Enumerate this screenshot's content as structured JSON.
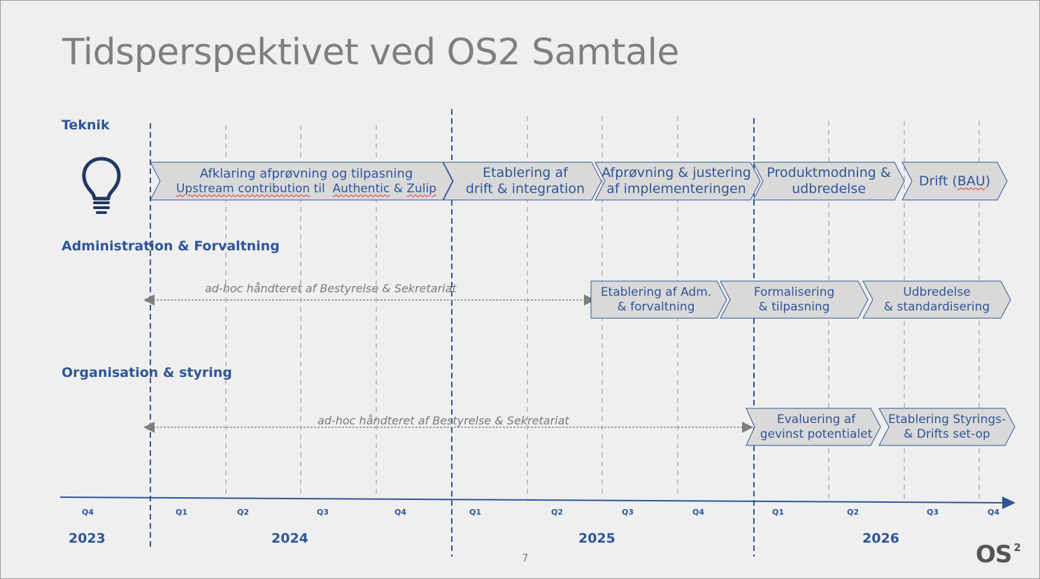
{
  "title": "Tidsperspektivet ved OS2 Samtale",
  "sections": {
    "teknik": "Teknik",
    "admin": "Administration & Forvaltning",
    "org": "Organisation & styring"
  },
  "teknik_phases": {
    "p1_line1": "Afklaring afprøvning og tilpasning",
    "p1_line2a": "Upstream",
    "p1_line2b": " contribution",
    "p1_line2c": " til  ",
    "p1_line2d": "Authentic",
    "p1_line2e": " & ",
    "p1_line2f": "Zulip",
    "p2_line1": "Etablering af",
    "p2_line2": "drift & integration",
    "p3_line1": "Afprøvning & justering",
    "p3_line2": "af implementeringen",
    "p4_line1": "Produktmodning &",
    "p4_line2": "udbredelse",
    "p5_a": "Drift (",
    "p5_b": "BAU",
    "p5_c": ")"
  },
  "admin_phases": {
    "note": "ad-hoc håndteret af Bestyrelse & Sekretariat",
    "p1_line1": "Etablering af Adm.",
    "p1_line2": "& forvaltning",
    "p2_line1": "Formalisering",
    "p2_line2": "& tilpasning",
    "p3_line1": "Udbredelse",
    "p3_line2": "& standardisering"
  },
  "org_phases": {
    "note": "ad-hoc håndteret af Bestyrelse & Sekretariat",
    "p1_line1": "Evaluering af",
    "p1_line2": "gevinst potentialet",
    "p2_line1": "Etablering Styrings-",
    "p2_line2": "& Drifts set-op"
  },
  "timeline": {
    "quarters": [
      "Q4",
      "Q1",
      "Q2",
      "Q3",
      "Q4",
      "Q1",
      "Q2",
      "Q3",
      "Q4",
      "Q1",
      "Q2",
      "Q3",
      "Q4"
    ],
    "years": [
      "2023",
      "2024",
      "2025",
      "2026"
    ]
  },
  "page_number": "7",
  "logo": {
    "text": "OS",
    "sup": "2"
  },
  "icons": {
    "teknik": "lightbulb-icon"
  },
  "colors": {
    "background": "#efefef",
    "accent": "#2f5597",
    "chevron_fill": "#d9d9d9",
    "grid_gray": "#bfbfbf",
    "arrow_gray": "#7f7f7f"
  }
}
